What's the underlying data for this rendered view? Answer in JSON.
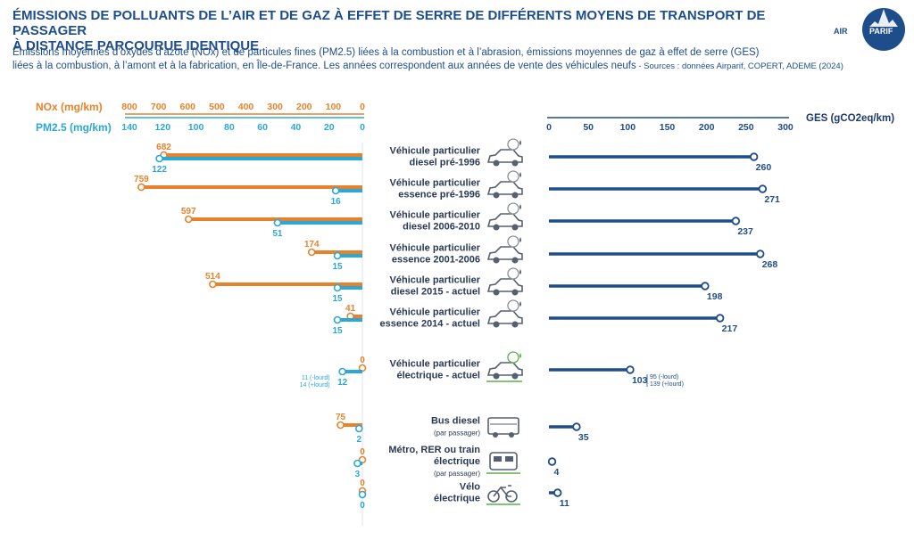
{
  "title": {
    "line1": "ÉMISSIONS DE POLLUANTS DE L’AIR ET DE GAZ À EFFET DE SERRE DE DIFFÉRENTS MOYENS DE TRANSPORT DE PASSAGER",
    "line2": "À DISTANCE PARCOURUE IDENTIQUE"
  },
  "subtitle": {
    "line1": "Émissions moyennes d’oxydes d’azote (NOx) et de particules fines (PM2.5) liées à la combustion et à l’abrasion, émissions moyennes de gaz à effet de serre (GES)",
    "line2": "liées à la combustion, à l’amont et à la fabrication, en Île-de-France. Les années correspondent  aux années de vente des véhicules neufs",
    "source": " - Sources : données Airparif, COPERT, ADEME (2024)"
  },
  "logo": {
    "left": "AIR",
    "right": "PARIF"
  },
  "colors": {
    "nox": "#e8822a",
    "pm": "#2aa8d8",
    "ges": "#1e4d8c",
    "title": "#1e4d8c"
  },
  "chart_data": {
    "type": "bar",
    "axes": {
      "nox": {
        "label": "NOx (mg/km)",
        "ticks": [
          800,
          700,
          600,
          500,
          400,
          300,
          200,
          100,
          0
        ],
        "range": [
          0,
          800
        ]
      },
      "pm": {
        "label": "PM2.5 (mg/km)",
        "ticks": [
          140,
          120,
          100,
          80,
          60,
          40,
          20,
          0
        ],
        "range": [
          0,
          140
        ]
      },
      "ges": {
        "label": "GES (gCO2eq/km)",
        "ticks": [
          0,
          50,
          100,
          150,
          200,
          250,
          300
        ],
        "range": [
          0,
          300
        ]
      }
    },
    "categories": [
      {
        "line1": "Véhicule particulier",
        "line2": "diesel pré-1996",
        "nox": 682,
        "pm": 122,
        "ges": 260,
        "icon": "car-diesel-icon"
      },
      {
        "line1": "Véhicule particulier",
        "line2": "essence pré-1996",
        "nox": 759,
        "pm": 16,
        "ges": 271,
        "icon": "car-petrol-icon"
      },
      {
        "line1": "Véhicule particulier",
        "line2": "diesel 2006-2010",
        "nox": 597,
        "pm": 51,
        "ges": 237,
        "icon": "car-diesel-icon"
      },
      {
        "line1": "Véhicule particulier",
        "line2": "essence 2001-2006",
        "nox": 174,
        "pm": 15,
        "ges": 268,
        "icon": "car-petrol-icon"
      },
      {
        "line1": "Véhicule particulier",
        "line2": "diesel 2015 - actuel",
        "nox": 514,
        "pm": 15,
        "ges": 198,
        "icon": "car-diesel-icon"
      },
      {
        "line1": "Véhicule particulier",
        "line2": "essence 2014 - actuel",
        "nox": 41,
        "pm": 15,
        "ges": 217,
        "icon": "car-petrol-icon"
      },
      {
        "line1": "Véhicule particulier",
        "line2": "électrique - actuel",
        "nox": 0,
        "pm": 12,
        "ges": 103,
        "icon": "car-electric-icon",
        "pm_note": [
          "11 (-lourd)",
          "14 (+lourd)"
        ],
        "ges_note": [
          "95 (-lourd)",
          "139 (+lourd)"
        ]
      },
      {
        "line1": "Bus diesel",
        "line2": "(par passager)",
        "nox": 75,
        "pm": 2,
        "ges": 35,
        "icon": "bus-icon"
      },
      {
        "line1": "Métro, RER ou train",
        "line2": "électrique",
        "line3": "(par passager)",
        "nox": 0,
        "pm": 3,
        "ges": 4,
        "icon": "train-icon"
      },
      {
        "line1": "Vélo",
        "line2": "électrique",
        "nox": 0,
        "pm": 0,
        "ges": 11,
        "icon": "bike-icon"
      }
    ]
  }
}
